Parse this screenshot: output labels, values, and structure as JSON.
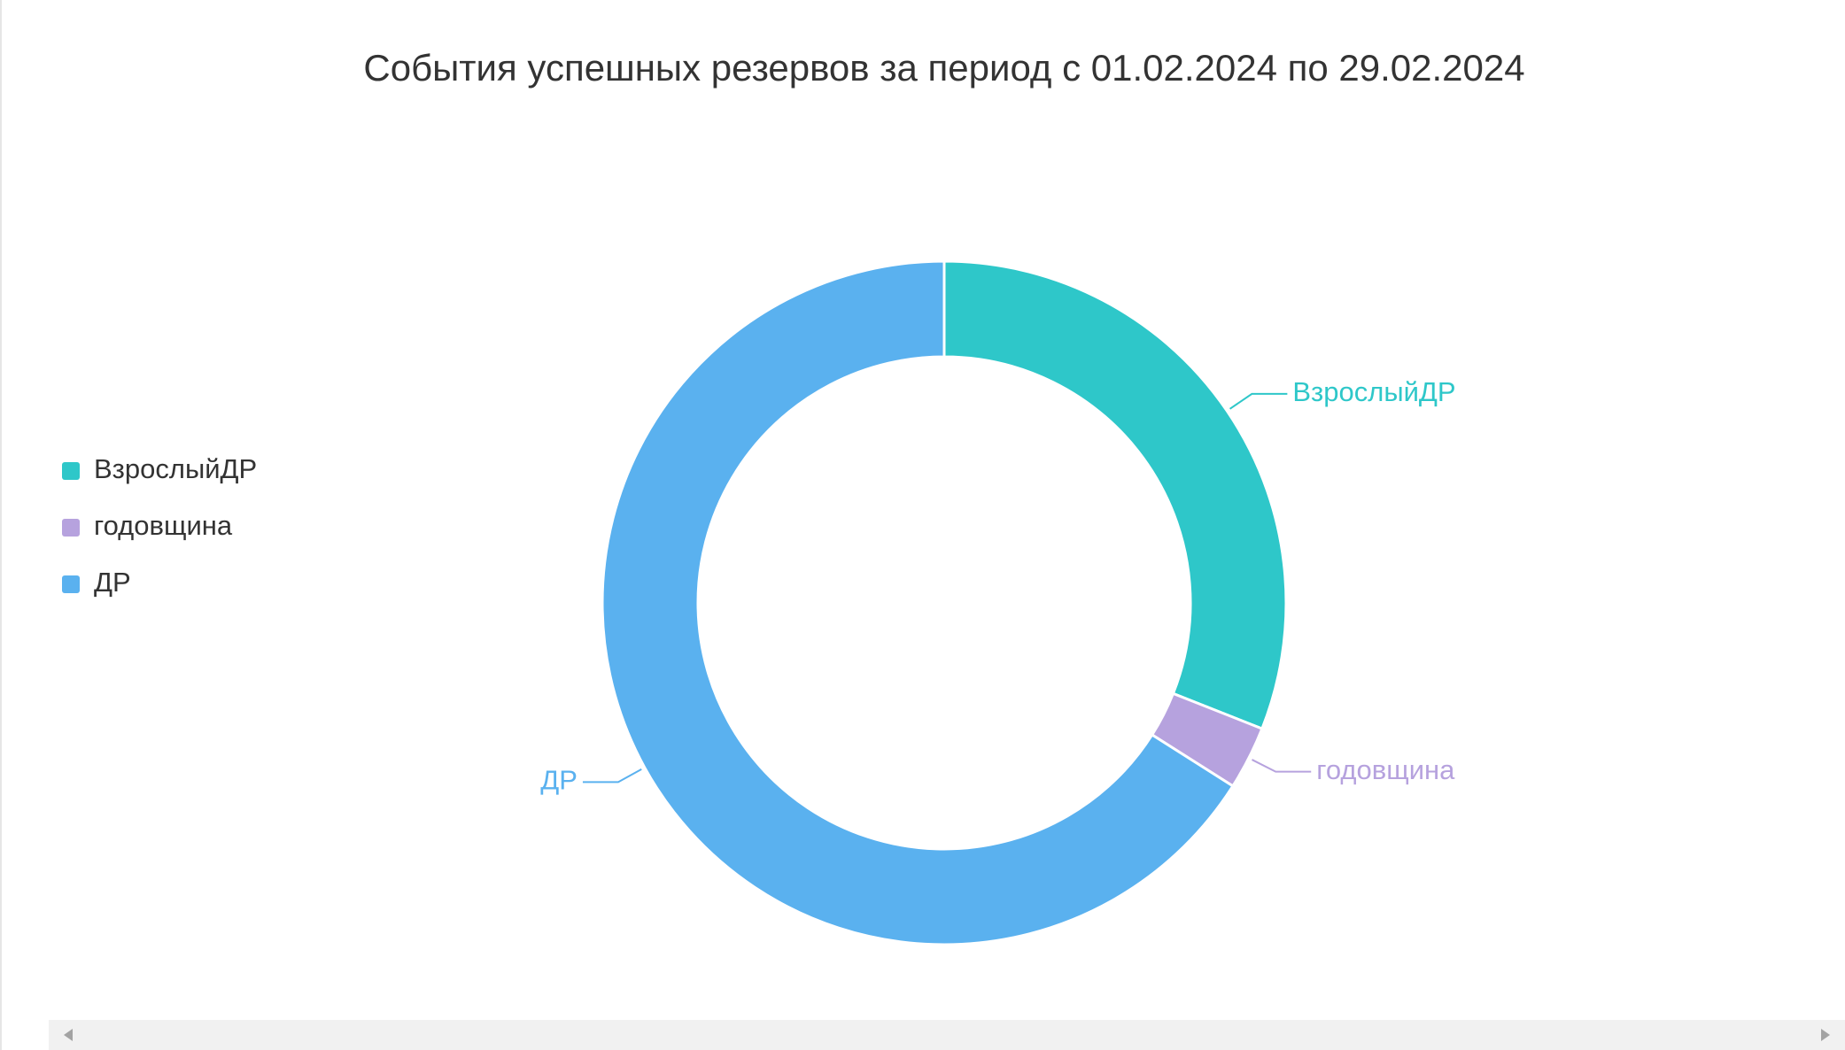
{
  "chart_data": {
    "type": "donut",
    "title": "События успешных резервов за период с 01.02.2024 по 29.02.2024",
    "categories": [
      "ВзрослыйДР",
      "годовщина",
      "ДР"
    ],
    "values": [
      31,
      3,
      66
    ],
    "colors": [
      "#2ec7c9",
      "#b6a2de",
      "#5ab1ef"
    ],
    "legend": "left"
  }
}
